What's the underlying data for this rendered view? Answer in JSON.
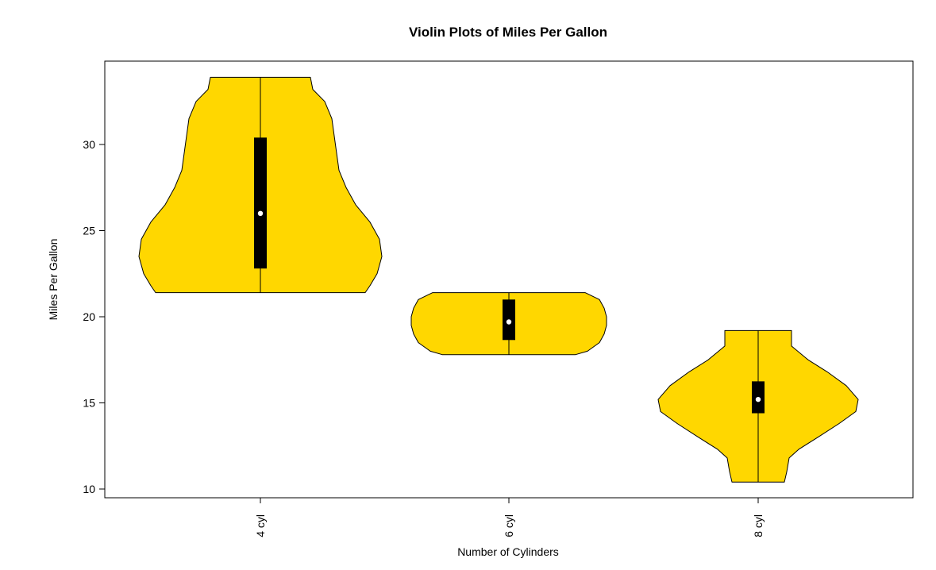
{
  "chart_data": {
    "type": "violin",
    "title": "Violin Plots of Miles Per Gallon",
    "xlabel": "Number of Cylinders",
    "ylabel": "Miles Per Gallon",
    "ylim": [
      9.5,
      34.8
    ],
    "yticks": [
      10,
      15,
      20,
      25,
      30
    ],
    "categories": [
      "4 cyl",
      "6 cyl",
      "8 cyl"
    ],
    "fill_color": "#FFD700",
    "box_color": "#000000",
    "median_color": "#FFFFFF",
    "grid": false,
    "violins": [
      {
        "category": "4 cyl",
        "min": 21.4,
        "q1": 22.8,
        "median": 26.0,
        "q3": 30.4,
        "max": 33.9,
        "density": [
          [
            21.4,
            0.44
          ],
          [
            21.8,
            0.46
          ],
          [
            22.5,
            0.49
          ],
          [
            23.5,
            0.51
          ],
          [
            24.5,
            0.5
          ],
          [
            25.5,
            0.46
          ],
          [
            26.5,
            0.4
          ],
          [
            27.5,
            0.36
          ],
          [
            28.5,
            0.33
          ],
          [
            29.5,
            0.32
          ],
          [
            30.5,
            0.31
          ],
          [
            31.5,
            0.3
          ],
          [
            32.5,
            0.27
          ],
          [
            33.2,
            0.22
          ],
          [
            33.9,
            0.21
          ]
        ]
      },
      {
        "category": "6 cyl",
        "min": 17.8,
        "q1": 18.65,
        "median": 19.7,
        "q3": 21.0,
        "max": 21.4,
        "density": [
          [
            17.8,
            0.28
          ],
          [
            18.0,
            0.33
          ],
          [
            18.5,
            0.38
          ],
          [
            19.0,
            0.4
          ],
          [
            19.5,
            0.41
          ],
          [
            20.0,
            0.41
          ],
          [
            20.5,
            0.4
          ],
          [
            21.0,
            0.38
          ],
          [
            21.4,
            0.32
          ]
        ]
      },
      {
        "category": "8 cyl",
        "min": 10.4,
        "q1": 14.4,
        "median": 15.2,
        "q3": 16.25,
        "max": 19.2,
        "density": [
          [
            10.4,
            0.11
          ],
          [
            11.0,
            0.12
          ],
          [
            11.8,
            0.13
          ],
          [
            12.3,
            0.17
          ],
          [
            13.0,
            0.25
          ],
          [
            13.8,
            0.34
          ],
          [
            14.5,
            0.41
          ],
          [
            15.2,
            0.42
          ],
          [
            16.0,
            0.37
          ],
          [
            16.8,
            0.29
          ],
          [
            17.5,
            0.21
          ],
          [
            18.3,
            0.14
          ],
          [
            19.2,
            0.14
          ]
        ]
      }
    ]
  }
}
